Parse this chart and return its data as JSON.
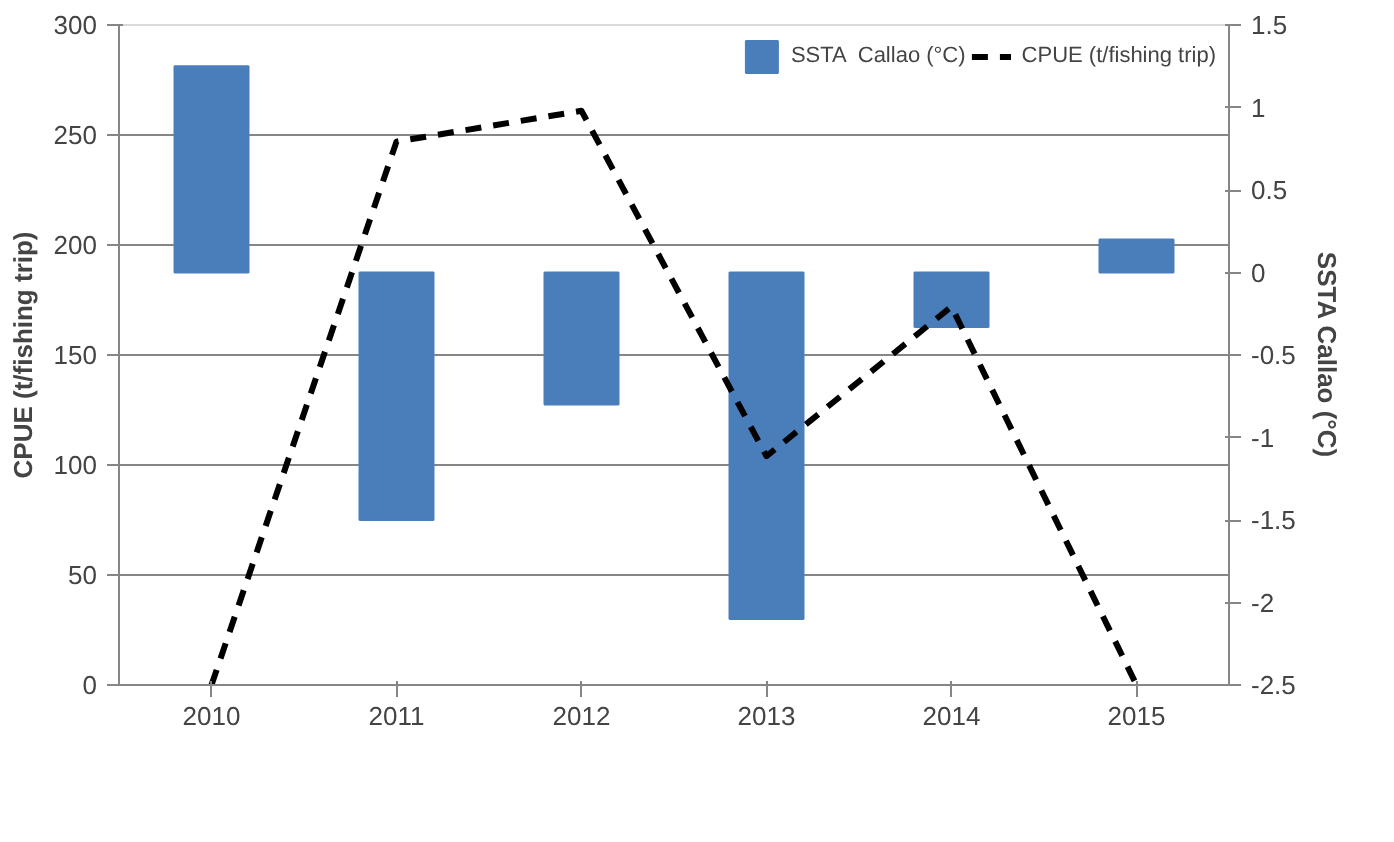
{
  "chart_data": {
    "type": "bar",
    "categories": [
      "2010",
      "2011",
      "2012",
      "2013",
      "2014",
      "2015"
    ],
    "series": [
      {
        "name": "SSTA  Callao (°C)",
        "axis": "y2",
        "color": "#4a7ebb",
        "values": [
          1.25,
          -1.5,
          -0.8,
          -2.1,
          -0.33,
          0.2
        ]
      },
      {
        "name": "CPUE (t/fishing trip)",
        "type": "line",
        "color": "#000000",
        "line_style": "dashed",
        "values": [
          0,
          247,
          261,
          104,
          172,
          0
        ]
      }
    ],
    "ylabel": "CPUE (t/fishing trip)",
    "y2label": "SSTA Callao (°C)",
    "ylim": [
      0,
      300
    ],
    "yticks": [
      0,
      50,
      100,
      150,
      200,
      250,
      300
    ],
    "y2lim": [
      -2.5,
      1.5
    ],
    "y2ticks": [
      -2.5,
      -2,
      -1.5,
      -1,
      -0.5,
      0,
      0.5,
      1,
      1.5
    ],
    "grid": "y",
    "legend": "top right"
  }
}
